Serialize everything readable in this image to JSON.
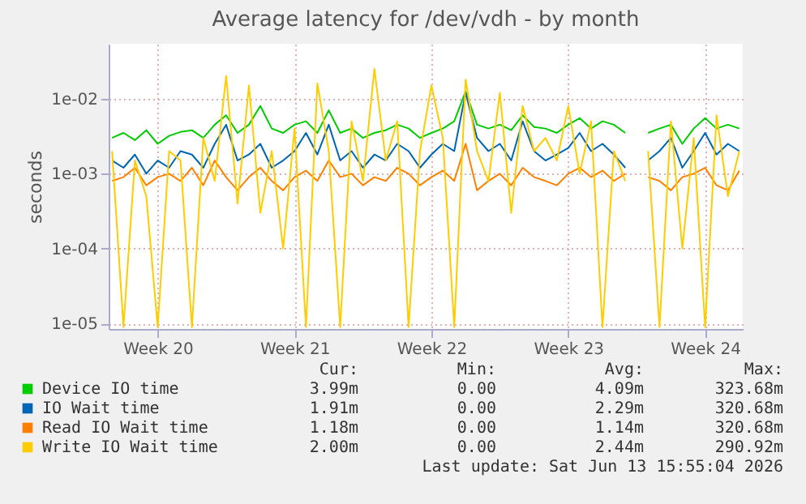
{
  "chart_data": {
    "type": "line",
    "title": "Average latency for /dev/vdh - by month",
    "ylabel": "seconds",
    "categories": [
      null,
      null,
      null,
      null,
      "Week 20",
      null,
      null,
      null,
      null,
      null,
      null,
      null,
      null,
      null,
      null,
      null,
      "Week 21",
      null,
      null,
      null,
      null,
      null,
      null,
      null,
      null,
      null,
      null,
      null,
      "Week 22",
      null,
      null,
      null,
      null,
      null,
      null,
      null,
      null,
      null,
      null,
      null,
      "Week 23",
      null,
      null,
      null,
      null,
      null,
      null,
      null,
      null,
      null,
      null,
      null,
      "Week 24",
      null,
      null,
      null
    ],
    "series": [
      {
        "name": "Device IO time",
        "color": "#00cc00",
        "values": [
          0.003,
          0.0035,
          0.0028,
          0.0038,
          0.0025,
          0.0032,
          0.0036,
          0.0038,
          0.003,
          0.0045,
          0.006,
          0.0035,
          0.0045,
          0.008,
          0.004,
          0.0035,
          0.0045,
          0.005,
          0.0035,
          0.007,
          0.0035,
          0.004,
          0.003,
          0.0035,
          0.0038,
          0.0045,
          0.004,
          0.003,
          0.0035,
          0.004,
          0.005,
          0.0125,
          0.0045,
          0.004,
          0.0045,
          0.0038,
          0.006,
          0.0042,
          0.004,
          0.0035,
          0.0045,
          0.0055,
          0.004,
          0.005,
          0.0045,
          0.0035,
          null,
          0.0035,
          0.004,
          0.0045,
          0.0025,
          0.004,
          0.0055,
          0.004,
          0.0045,
          0.004
        ]
      },
      {
        "name": "IO Wait time",
        "color": "#0066b3",
        "values": [
          0.0015,
          0.0012,
          0.0018,
          0.001,
          0.0015,
          0.0012,
          0.002,
          0.0018,
          0.0012,
          0.0025,
          0.0045,
          0.0015,
          0.0018,
          0.0025,
          0.0012,
          0.0015,
          0.002,
          0.0035,
          0.0018,
          0.0045,
          0.0015,
          0.002,
          0.0012,
          0.0018,
          0.0015,
          0.0025,
          0.002,
          0.0012,
          0.0018,
          0.0025,
          0.002,
          0.012,
          0.003,
          0.002,
          0.0025,
          0.0015,
          0.005,
          0.002,
          0.0015,
          0.0018,
          0.0022,
          0.0035,
          0.002,
          0.0025,
          0.0018,
          0.0012,
          null,
          0.0015,
          0.002,
          0.003,
          0.0012,
          0.002,
          0.0035,
          0.0018,
          0.0025,
          0.002
        ]
      },
      {
        "name": "Read IO Wait time",
        "color": "#ff8000",
        "values": [
          0.0008,
          0.0009,
          0.0012,
          0.0007,
          0.0009,
          0.001,
          0.0008,
          0.0012,
          0.0007,
          0.0015,
          0.0009,
          0.0006,
          0.0009,
          0.0012,
          0.0008,
          0.0006,
          0.0009,
          0.0011,
          0.0008,
          0.0015,
          0.0009,
          0.001,
          0.0007,
          0.0009,
          0.0008,
          0.0012,
          0.001,
          0.0007,
          0.0009,
          0.0011,
          0.0008,
          0.0025,
          0.0006,
          0.0008,
          0.001,
          0.0007,
          0.0012,
          0.0009,
          0.0008,
          0.0007,
          0.001,
          0.0012,
          0.0009,
          0.0011,
          0.0008,
          0.001,
          null,
          0.0009,
          0.0008,
          0.0006,
          0.0009,
          0.001,
          0.0012,
          0.0007,
          0.0006,
          0.0011
        ]
      },
      {
        "name": "Write IO Wait time",
        "color": "#ffcc00",
        "values": [
          0.002,
          9e-06,
          0.0015,
          0.0005,
          9e-06,
          0.002,
          0.0015,
          9e-06,
          0.003,
          0.0008,
          0.02,
          0.0004,
          0.015,
          0.0003,
          0.002,
          0.0001,
          0.004,
          9e-06,
          0.016,
          0.002,
          9e-06,
          0.005,
          0.0008,
          0.025,
          0.0015,
          0.005,
          9e-06,
          0.002,
          0.015,
          0.003,
          9e-06,
          0.018,
          0.002,
          0.0008,
          0.012,
          0.0003,
          0.008,
          0.002,
          0.003,
          0.0015,
          0.008,
          0.001,
          0.005,
          9e-06,
          0.002,
          0.0008,
          null,
          0.002,
          9e-06,
          0.005,
          0.0001,
          0.003,
          9e-06,
          0.006,
          0.0005,
          0.002
        ]
      }
    ],
    "log": true,
    "ylim": [
      8.5e-06,
      0.054
    ],
    "yticks": [
      {
        "value": 1e-05,
        "label": "1e-05"
      },
      {
        "value": 0.0001,
        "label": "1e-04"
      },
      {
        "value": 0.001,
        "label": "1e-03"
      },
      {
        "value": 0.01,
        "label": "1e-02"
      }
    ],
    "grid": true,
    "legend": "bottom",
    "marker": "none",
    "line_style": "solid",
    "annotations": [
      "Cur:",
      "Min:",
      "Avg:",
      "Max:",
      "3.99m",
      "0.00",
      "4.09m",
      "323.68m",
      "1.91m",
      "0.00",
      "2.29m",
      "320.68m",
      "1.18m",
      "0.00",
      "1.14m",
      "320.68m",
      "2.00m",
      "0.00",
      "2.44m",
      "290.92m",
      "Last update: Sat Jun 13 15:55:04 2026"
    ]
  }
}
